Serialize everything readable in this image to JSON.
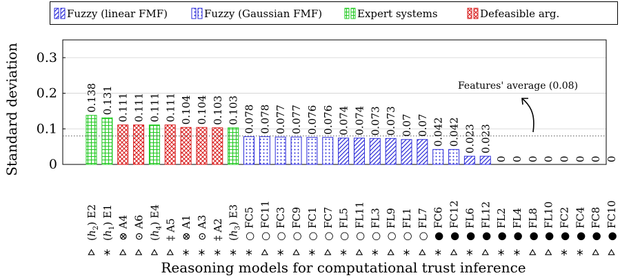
{
  "chart_data": {
    "type": "bar",
    "ylabel": "Standard deviation",
    "xlabel": "Reasoning models for computational trust inference",
    "ylim": [
      0,
      0.35
    ],
    "yticks": [
      0,
      0.1,
      0.2,
      0.3
    ],
    "ytick_labels": [
      "0",
      "0.1",
      "0.2",
      "0.3"
    ],
    "grid": true,
    "legend_position": "top",
    "legend": [
      {
        "label": "Fuzzy (linear FMF)",
        "pattern": "diag",
        "color": "#2a2ad8"
      },
      {
        "label": "Fuzzy (Gaussian FMF)",
        "pattern": "dots",
        "color": "#2a2ad8"
      },
      {
        "label": "Expert systems",
        "pattern": "grid",
        "color": "#1ec81e"
      },
      {
        "label": "Defeasible arg.",
        "pattern": "cross",
        "color": "#d81e1e"
      }
    ],
    "categories": [
      {
        "name": "(h2) E2",
        "pre": "(",
        "h": "h",
        "sub": "2",
        "post": ") E2",
        "value": 0.138,
        "label": "0.138",
        "group": "Expert systems",
        "marker": "triangle"
      },
      {
        "name": "(h1) E1",
        "pre": "(",
        "h": "h",
        "sub": "1",
        "post": ") E1",
        "value": 0.131,
        "label": "0.131",
        "group": "Expert systems",
        "marker": "star"
      },
      {
        "name": "⊗ A4",
        "pre": "⊗ A4",
        "value": 0.111,
        "label": "0.111",
        "group": "Defeasible arg.",
        "marker": "triangle"
      },
      {
        "name": "⊙ A6",
        "pre": "⊙ A6",
        "value": 0.111,
        "label": "0.111",
        "group": "Defeasible arg.",
        "marker": "triangle"
      },
      {
        "name": "(h4) E4",
        "pre": "(",
        "h": "h",
        "sub": "4",
        "post": ") E4",
        "value": 0.111,
        "label": "0.111",
        "group": "Expert systems",
        "marker": "triangle"
      },
      {
        "name": "‡ A5",
        "pre": "‡ A5",
        "value": 0.111,
        "label": "0.111",
        "group": "Defeasible arg.",
        "marker": "triangle"
      },
      {
        "name": "⊗ A1",
        "pre": "⊗ A1",
        "value": 0.104,
        "label": "0.104",
        "group": "Defeasible arg.",
        "marker": "star"
      },
      {
        "name": "⊙ A3",
        "pre": "⊙ A3",
        "value": 0.104,
        "label": "0.104",
        "group": "Defeasible arg.",
        "marker": "star"
      },
      {
        "name": "‡ A2",
        "pre": "‡ A2",
        "value": 0.103,
        "label": "0.103",
        "group": "Defeasible arg.",
        "marker": "star"
      },
      {
        "name": "(h3) E3",
        "pre": "(",
        "h": "h",
        "sub": "3",
        "post": ") E3",
        "value": 0.103,
        "label": "0.103",
        "group": "Expert systems",
        "marker": "star"
      },
      {
        "name": "○ FC5",
        "pre": "○ FC5",
        "value": 0.078,
        "label": "0.078",
        "group": "Fuzzy (Gaussian FMF)",
        "marker": "star"
      },
      {
        "name": "○ FC11",
        "pre": "○ FC11",
        "value": 0.078,
        "label": "0.078",
        "group": "Fuzzy (Gaussian FMF)",
        "marker": "triangle"
      },
      {
        "name": "○ FC3",
        "pre": "○ FC3",
        "value": 0.077,
        "label": "0.077",
        "group": "Fuzzy (Gaussian FMF)",
        "marker": "star"
      },
      {
        "name": "○ FC9",
        "pre": "○ FC9",
        "value": 0.077,
        "label": "0.077",
        "group": "Fuzzy (Gaussian FMF)",
        "marker": "triangle"
      },
      {
        "name": "○ FC1",
        "pre": "○ FC1",
        "value": 0.076,
        "label": "0.076",
        "group": "Fuzzy (Gaussian FMF)",
        "marker": "star"
      },
      {
        "name": "○ FC7",
        "pre": "○ FC7",
        "value": 0.076,
        "label": "0.076",
        "group": "Fuzzy (Gaussian FMF)",
        "marker": "triangle"
      },
      {
        "name": "○ FL5",
        "pre": "○ FL5",
        "value": 0.074,
        "label": "0.074",
        "group": "Fuzzy (linear FMF)",
        "marker": "star"
      },
      {
        "name": "○ FL11",
        "pre": "○ FL11",
        "value": 0.074,
        "label": "0.074",
        "group": "Fuzzy (linear FMF)",
        "marker": "triangle"
      },
      {
        "name": "○ FL3",
        "pre": "○ FL3",
        "value": 0.073,
        "label": "0.073",
        "group": "Fuzzy (linear FMF)",
        "marker": "star"
      },
      {
        "name": "○ FL9",
        "pre": "○ FL9",
        "value": 0.073,
        "label": "0.073",
        "group": "Fuzzy (linear FMF)",
        "marker": "triangle"
      },
      {
        "name": "○ FL1",
        "pre": "○ FL1",
        "value": 0.07,
        "label": "0.07",
        "group": "Fuzzy (linear FMF)",
        "marker": "star"
      },
      {
        "name": "○ FL7",
        "pre": "○ FL7",
        "value": 0.07,
        "label": "0.07",
        "group": "Fuzzy (linear FMF)",
        "marker": "triangle"
      },
      {
        "name": "● FC6",
        "pre": "● FC6",
        "value": 0.042,
        "label": "0.042",
        "group": "Fuzzy (Gaussian FMF)",
        "marker": "star"
      },
      {
        "name": "● FC12",
        "pre": "● FC12",
        "value": 0.042,
        "label": "0.042",
        "group": "Fuzzy (Gaussian FMF)",
        "marker": "triangle"
      },
      {
        "name": "● FL6",
        "pre": "● FL6",
        "value": 0.023,
        "label": "0.023",
        "group": "Fuzzy (linear FMF)",
        "marker": "star"
      },
      {
        "name": "● FL12",
        "pre": "● FL12",
        "value": 0.023,
        "label": "0.023",
        "group": "Fuzzy (linear FMF)",
        "marker": "triangle"
      },
      {
        "name": "● FL2",
        "pre": "● FL2",
        "value": 0,
        "label": "0",
        "group": "Fuzzy (linear FMF)",
        "marker": "star"
      },
      {
        "name": "● FL4",
        "pre": "● FL4",
        "value": 0,
        "label": "0",
        "group": "Fuzzy (linear FMF)",
        "marker": "star"
      },
      {
        "name": "● FL8",
        "pre": "● FL8",
        "value": 0,
        "label": "0",
        "group": "Fuzzy (linear FMF)",
        "marker": "triangle"
      },
      {
        "name": "● FL10",
        "pre": "● FL10",
        "value": 0,
        "label": "0",
        "group": "Fuzzy (linear FMF)",
        "marker": "triangle"
      },
      {
        "name": "● FC2",
        "pre": "● FC2",
        "value": 0,
        "label": "0",
        "group": "Fuzzy (Gaussian FMF)",
        "marker": "star"
      },
      {
        "name": "● FC4",
        "pre": "● FC4",
        "value": 0,
        "label": "0",
        "group": "Fuzzy (Gaussian FMF)",
        "marker": "star"
      },
      {
        "name": "● FC8",
        "pre": "● FC8",
        "value": 0,
        "label": "0",
        "group": "Fuzzy (Gaussian FMF)",
        "marker": "triangle"
      },
      {
        "name": "● FC10",
        "pre": "● FC10",
        "value": 0,
        "label": "0",
        "group": "Fuzzy (Gaussian FMF)",
        "marker": "triangle"
      }
    ],
    "reference_line": {
      "value": 0.08,
      "label": "Features' average (0.08)",
      "style": "dotted"
    }
  }
}
